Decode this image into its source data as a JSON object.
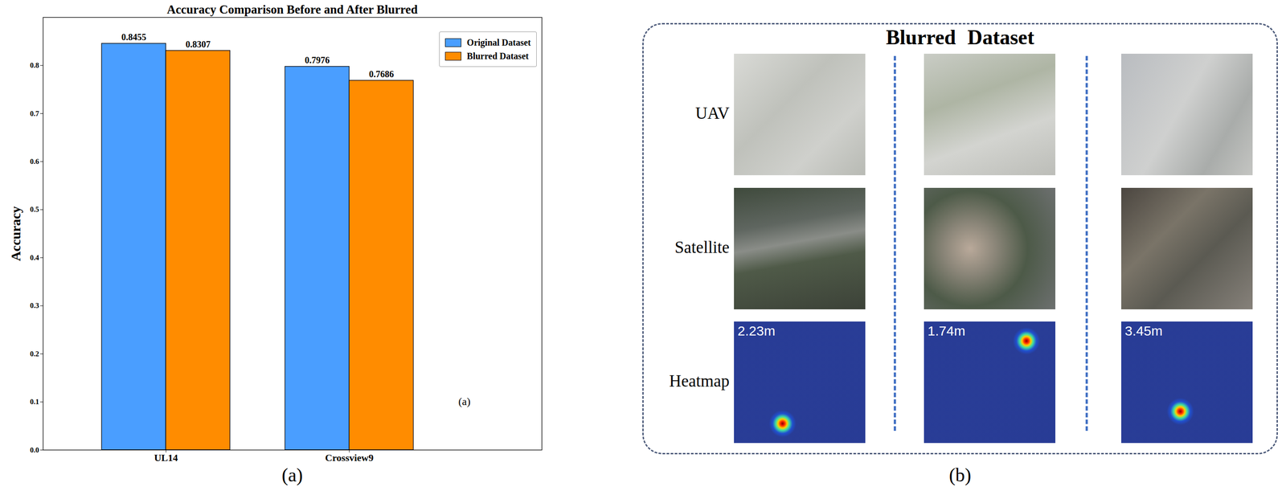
{
  "chart_data": {
    "type": "bar",
    "title": "Accuracy Comparison Before and After Blurred",
    "y_label": "Accuracy",
    "categories": [
      "UL14",
      "Crossview9"
    ],
    "series": [
      {
        "name": "Original Dataset",
        "color": "#4a9eff",
        "values": [
          0.8455,
          0.7976
        ]
      },
      {
        "name": "Blurred Dataset",
        "color": "#ff8c00",
        "values": [
          0.8307,
          0.7686
        ]
      }
    ],
    "ylim": [
      0,
      0.9
    ],
    "yticks": [
      {
        "value": 0,
        "label": "0.0"
      },
      0.1,
      0.2,
      0.3,
      0.4,
      0.5,
      0.6,
      0.7,
      0.8
    ],
    "grid": false,
    "legend": "upper right",
    "data_labels": true,
    "annotation": "(a)",
    "caption": "(a)"
  },
  "panel_b": {
    "title": "Blurred Dataset",
    "rows": [
      "UAV",
      "Satellite",
      "Heatmap"
    ],
    "errors": [
      "2.23m",
      "1.74m",
      "3.45m"
    ],
    "caption": "(b)"
  }
}
